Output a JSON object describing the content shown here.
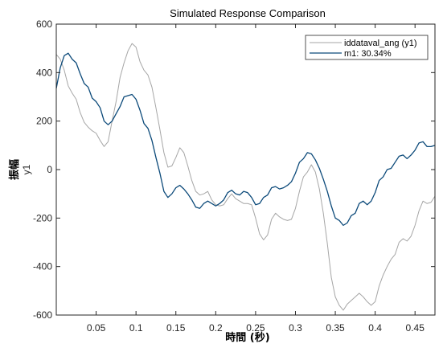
{
  "chart_data": {
    "type": "line",
    "title": "Simulated Response Comparison",
    "xlabel": "時間 (秒)",
    "ylabel": "振幅",
    "channel_label": "y1",
    "xlim": [
      0.0,
      0.475
    ],
    "ylim": [
      -600,
      600
    ],
    "xticks": [
      0.05,
      0.1,
      0.15,
      0.2,
      0.25,
      0.3,
      0.35,
      0.4,
      0.45
    ],
    "xtick_labels": [
      "0.05",
      "0.1",
      "0.15",
      "0.2",
      "0.25",
      "0.3",
      "0.35",
      "0.4",
      "0.45"
    ],
    "yticks": [
      -600,
      -400,
      -200,
      0,
      200,
      400,
      600
    ],
    "ytick_labels": [
      "-600",
      "-400",
      "-200",
      "0",
      "200",
      "400",
      "600"
    ],
    "grid": false,
    "legend_position": "top-right",
    "series": [
      {
        "name": "iddataval_ang (y1)",
        "color": "#a6a6a6",
        "x": [
          0.0,
          0.005,
          0.01,
          0.015,
          0.02,
          0.025,
          0.03,
          0.035,
          0.04,
          0.045,
          0.05,
          0.055,
          0.06,
          0.065,
          0.07,
          0.075,
          0.08,
          0.085,
          0.09,
          0.095,
          0.1,
          0.105,
          0.11,
          0.115,
          0.12,
          0.125,
          0.13,
          0.135,
          0.14,
          0.145,
          0.15,
          0.155,
          0.16,
          0.165,
          0.17,
          0.175,
          0.18,
          0.185,
          0.19,
          0.195,
          0.2,
          0.205,
          0.21,
          0.215,
          0.22,
          0.225,
          0.23,
          0.235,
          0.24,
          0.245,
          0.25,
          0.255,
          0.26,
          0.265,
          0.27,
          0.275,
          0.28,
          0.285,
          0.29,
          0.295,
          0.3,
          0.305,
          0.31,
          0.315,
          0.32,
          0.325,
          0.33,
          0.335,
          0.34,
          0.345,
          0.35,
          0.355,
          0.36,
          0.365,
          0.37,
          0.375,
          0.38,
          0.385,
          0.39,
          0.395,
          0.4,
          0.405,
          0.41,
          0.415,
          0.42,
          0.425,
          0.43,
          0.435,
          0.44,
          0.445,
          0.45,
          0.455,
          0.46,
          0.465,
          0.47,
          0.475
        ],
        "values": [
          475,
          455,
          410,
          345,
          315,
          290,
          235,
          195,
          175,
          160,
          150,
          120,
          95,
          115,
          200,
          280,
          380,
          440,
          490,
          520,
          505,
          445,
          410,
          390,
          340,
          255,
          165,
          70,
          10,
          15,
          50,
          90,
          70,
          15,
          -45,
          -90,
          -105,
          -100,
          -90,
          -125,
          -145,
          -150,
          -145,
          -120,
          -100,
          -120,
          -130,
          -140,
          -140,
          -145,
          -200,
          -265,
          -290,
          -270,
          -205,
          -180,
          -195,
          -205,
          -210,
          -205,
          -160,
          -90,
          -30,
          -10,
          20,
          -10,
          -80,
          -180,
          -305,
          -445,
          -525,
          -560,
          -580,
          -555,
          -540,
          -525,
          -510,
          -525,
          -545,
          -560,
          -545,
          -480,
          -435,
          -400,
          -370,
          -350,
          -300,
          -285,
          -295,
          -275,
          -230,
          -170,
          -130,
          -140,
          -135,
          -110
        ]
      },
      {
        "name": "m1: 30.34%",
        "color": "#0c4a7a",
        "x": [
          0.0,
          0.005,
          0.01,
          0.015,
          0.02,
          0.025,
          0.03,
          0.035,
          0.04,
          0.045,
          0.05,
          0.055,
          0.06,
          0.065,
          0.07,
          0.075,
          0.08,
          0.085,
          0.09,
          0.095,
          0.1,
          0.105,
          0.11,
          0.115,
          0.12,
          0.125,
          0.13,
          0.135,
          0.14,
          0.145,
          0.15,
          0.155,
          0.16,
          0.165,
          0.17,
          0.175,
          0.18,
          0.185,
          0.19,
          0.195,
          0.2,
          0.205,
          0.21,
          0.215,
          0.22,
          0.225,
          0.23,
          0.235,
          0.24,
          0.245,
          0.25,
          0.255,
          0.26,
          0.265,
          0.27,
          0.275,
          0.28,
          0.285,
          0.29,
          0.295,
          0.3,
          0.305,
          0.31,
          0.315,
          0.32,
          0.325,
          0.33,
          0.335,
          0.34,
          0.345,
          0.35,
          0.355,
          0.36,
          0.365,
          0.37,
          0.375,
          0.38,
          0.385,
          0.39,
          0.395,
          0.4,
          0.405,
          0.41,
          0.415,
          0.42,
          0.425,
          0.43,
          0.435,
          0.44,
          0.445,
          0.45,
          0.455,
          0.46,
          0.465,
          0.47,
          0.475
        ],
        "values": [
          335,
          420,
          470,
          480,
          455,
          440,
          395,
          355,
          340,
          295,
          280,
          255,
          200,
          185,
          200,
          230,
          260,
          300,
          305,
          310,
          290,
          245,
          190,
          170,
          120,
          50,
          -15,
          -90,
          -115,
          -100,
          -75,
          -65,
          -80,
          -100,
          -125,
          -155,
          -160,
          -140,
          -130,
          -140,
          -150,
          -140,
          -125,
          -95,
          -85,
          -100,
          -105,
          -90,
          -95,
          -115,
          -145,
          -140,
          -115,
          -105,
          -75,
          -70,
          -80,
          -75,
          -65,
          -50,
          -15,
          30,
          45,
          70,
          65,
          40,
          5,
          -40,
          -90,
          -150,
          -200,
          -210,
          -230,
          -220,
          -190,
          -180,
          -140,
          -130,
          -145,
          -130,
          -95,
          -45,
          -30,
          0,
          5,
          30,
          55,
          60,
          45,
          60,
          80,
          110,
          115,
          95,
          95,
          100
        ]
      }
    ]
  }
}
